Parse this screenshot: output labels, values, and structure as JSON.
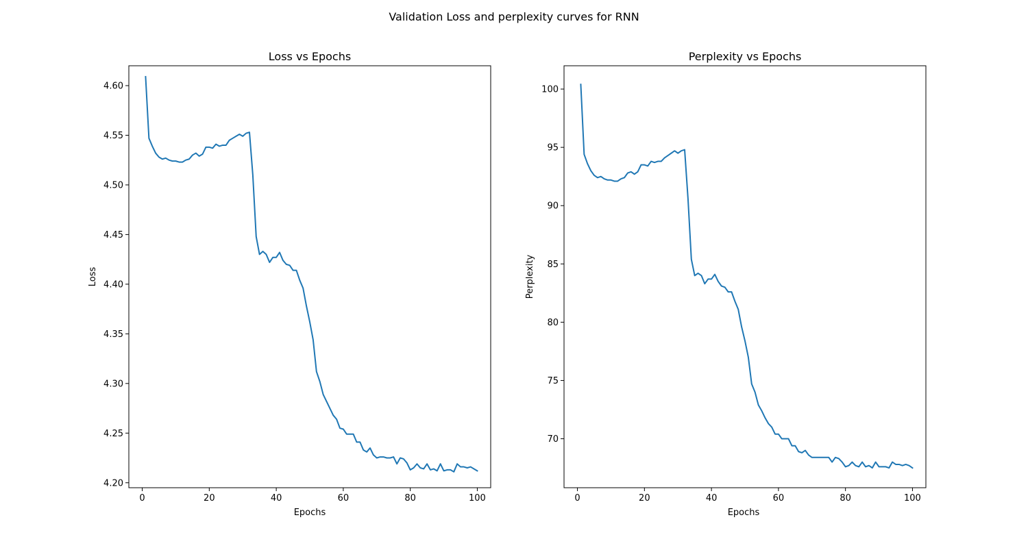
{
  "figure": {
    "suptitle": "Validation Loss and perplexity curves for RNN"
  },
  "chart_data": [
    {
      "type": "line",
      "title": "Loss vs Epochs",
      "xlabel": "Epochs",
      "ylabel": "Loss",
      "xlim": [
        -4,
        104
      ],
      "ylim": [
        4.195,
        4.62
      ],
      "xticks": [
        0,
        20,
        40,
        60,
        80,
        100
      ],
      "yticks": [
        4.2,
        4.25,
        4.3,
        4.35,
        4.4,
        4.45,
        4.5,
        4.55,
        4.6
      ],
      "ytick_decimals": 2,
      "grid": false,
      "line_color": "#1f77b4",
      "series": [
        {
          "x": [
            1,
            2,
            3,
            4,
            5,
            6,
            7,
            8,
            9,
            10,
            11,
            12,
            13,
            14,
            15,
            16,
            17,
            18,
            19,
            20,
            21,
            22,
            23,
            24,
            25,
            26,
            27,
            28,
            29,
            30,
            31,
            32,
            33,
            34,
            35,
            36,
            37,
            38,
            39,
            40,
            41,
            42,
            43,
            44,
            45,
            46,
            47,
            48,
            49,
            50,
            51,
            52,
            53,
            54,
            55,
            56,
            57,
            58,
            59,
            60,
            61,
            62,
            63,
            64,
            65,
            66,
            67,
            68,
            69,
            70,
            71,
            72,
            73,
            74,
            75,
            76,
            77,
            78,
            79,
            80,
            81,
            82,
            83,
            84,
            85,
            86,
            87,
            88,
            89,
            90,
            91,
            92,
            93,
            94,
            95,
            96,
            97,
            98,
            99,
            100
          ],
          "values": [
            4.609,
            4.547,
            4.539,
            4.532,
            4.528,
            4.526,
            4.527,
            4.525,
            4.524,
            4.524,
            4.523,
            4.523,
            4.525,
            4.526,
            4.53,
            4.532,
            4.529,
            4.531,
            4.538,
            4.538,
            4.537,
            4.541,
            4.539,
            4.54,
            4.54,
            4.545,
            4.547,
            4.549,
            4.551,
            4.549,
            4.552,
            4.553,
            4.51,
            4.448,
            4.43,
            4.433,
            4.43,
            4.422,
            4.427,
            4.427,
            4.432,
            4.424,
            4.42,
            4.419,
            4.414,
            4.414,
            4.404,
            4.396,
            4.378,
            4.362,
            4.344,
            4.312,
            4.302,
            4.289,
            4.282,
            4.275,
            4.268,
            4.264,
            4.255,
            4.254,
            4.249,
            4.249,
            4.249,
            4.241,
            4.241,
            4.233,
            4.231,
            4.235,
            4.228,
            4.225,
            4.226,
            4.226,
            4.225,
            4.225,
            4.226,
            4.219,
            4.225,
            4.224,
            4.22,
            4.213,
            4.215,
            4.219,
            4.215,
            4.214,
            4.219,
            4.213,
            4.214,
            4.212,
            4.219,
            4.212,
            4.213,
            4.213,
            4.211,
            4.219,
            4.216,
            4.216,
            4.215,
            4.216,
            4.214,
            4.212
          ]
        }
      ]
    },
    {
      "type": "line",
      "title": "Perplexity vs Epochs",
      "xlabel": "Epochs",
      "ylabel": "Perplexity",
      "xlim": [
        -4,
        104
      ],
      "ylim": [
        65.8,
        102.0
      ],
      "xticks": [
        0,
        20,
        40,
        60,
        80,
        100
      ],
      "yticks": [
        70,
        75,
        80,
        85,
        90,
        95,
        100
      ],
      "ytick_decimals": 0,
      "grid": false,
      "line_color": "#1f77b4",
      "series": [
        {
          "x": [
            1,
            2,
            3,
            4,
            5,
            6,
            7,
            8,
            9,
            10,
            11,
            12,
            13,
            14,
            15,
            16,
            17,
            18,
            19,
            20,
            21,
            22,
            23,
            24,
            25,
            26,
            27,
            28,
            29,
            30,
            31,
            32,
            33,
            34,
            35,
            36,
            37,
            38,
            39,
            40,
            41,
            42,
            43,
            44,
            45,
            46,
            47,
            48,
            49,
            50,
            51,
            52,
            53,
            54,
            55,
            56,
            57,
            58,
            59,
            60,
            61,
            62,
            63,
            64,
            65,
            66,
            67,
            68,
            69,
            70,
            71,
            72,
            73,
            74,
            75,
            76,
            77,
            78,
            79,
            80,
            81,
            82,
            83,
            84,
            85,
            86,
            87,
            88,
            89,
            90,
            91,
            92,
            93,
            94,
            95,
            96,
            97,
            98,
            99,
            100
          ],
          "values": [
            100.4,
            94.4,
            93.6,
            93.0,
            92.6,
            92.4,
            92.5,
            92.3,
            92.2,
            92.2,
            92.1,
            92.1,
            92.3,
            92.4,
            92.8,
            92.9,
            92.7,
            92.9,
            93.5,
            93.5,
            93.4,
            93.8,
            93.7,
            93.8,
            93.8,
            94.1,
            94.3,
            94.5,
            94.7,
            94.5,
            94.7,
            94.8,
            90.6,
            85.4,
            84.0,
            84.2,
            84.0,
            83.3,
            83.7,
            83.7,
            84.1,
            83.5,
            83.1,
            83.0,
            82.6,
            82.6,
            81.8,
            81.1,
            79.6,
            78.4,
            77.0,
            74.7,
            74.0,
            72.9,
            72.4,
            71.8,
            71.3,
            71.0,
            70.4,
            70.4,
            70.0,
            70.0,
            70.0,
            69.4,
            69.4,
            68.9,
            68.8,
            69.0,
            68.6,
            68.4,
            68.4,
            68.4,
            68.4,
            68.4,
            68.4,
            68.0,
            68.4,
            68.3,
            68.0,
            67.6,
            67.7,
            68.0,
            67.7,
            67.6,
            68.0,
            67.6,
            67.7,
            67.5,
            68.0,
            67.6,
            67.6,
            67.6,
            67.5,
            68.0,
            67.8,
            67.8,
            67.7,
            67.8,
            67.7,
            67.5
          ]
        }
      ]
    }
  ]
}
